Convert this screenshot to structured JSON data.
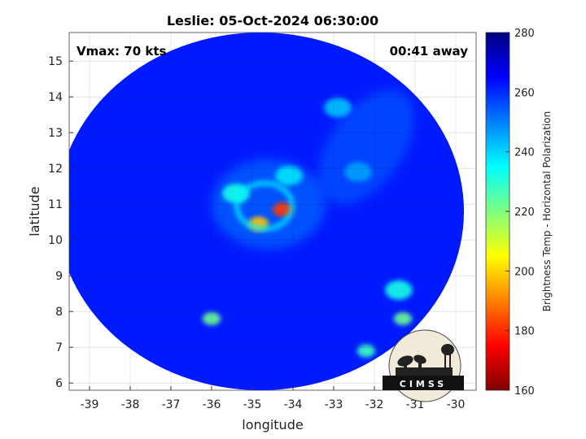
{
  "chart_data": {
    "type": "heatmap",
    "title": "Leslie: 05-Oct-2024 06:30:00",
    "xlabel": "longitude",
    "ylabel": "latitude",
    "xlim": [
      -39.5,
      -29.5
    ],
    "ylim": [
      5.8,
      15.8
    ],
    "x_ticks": [
      "-39",
      "-38",
      "-37",
      "-36",
      "-35",
      "-34",
      "-33",
      "-32",
      "-31",
      "-30"
    ],
    "y_ticks": [
      "6",
      "7",
      "8",
      "9",
      "10",
      "11",
      "12",
      "13",
      "14",
      "15"
    ],
    "grid": true,
    "annotations": {
      "left": "Vmax: 70 kts",
      "right": "00:41 away"
    },
    "colorbar": {
      "label": "Brightness Temp - Horizontal Polarization",
      "range": [
        160,
        280
      ],
      "ticks": [
        "280",
        "260",
        "240",
        "220",
        "200",
        "180",
        "160"
      ],
      "colormap": "jet"
    },
    "field": {
      "center": [
        -34.8,
        10.8
      ],
      "swath_radius_deg": 5.0,
      "background_value": 262,
      "features": [
        {
          "lon": -34.25,
          "lat": 10.85,
          "value": 182
        },
        {
          "lon": -34.85,
          "lat": 10.45,
          "value": 198
        },
        {
          "lon": -35.4,
          "lat": 11.3,
          "value": 232
        },
        {
          "lon": -34.1,
          "lat": 11.8,
          "value": 238
        },
        {
          "lon": -31.3,
          "lat": 7.8,
          "value": 222
        },
        {
          "lon": -31.4,
          "lat": 8.6,
          "value": 232
        },
        {
          "lon": -36.0,
          "lat": 7.8,
          "value": 222
        },
        {
          "lon": -32.2,
          "lat": 6.9,
          "value": 228
        },
        {
          "lon": -32.9,
          "lat": 13.7,
          "value": 242
        },
        {
          "lon": -32.4,
          "lat": 11.9,
          "value": 246
        }
      ]
    }
  },
  "logo": {
    "text": "CIMSS",
    "icon": "cimss-logo-icon"
  }
}
